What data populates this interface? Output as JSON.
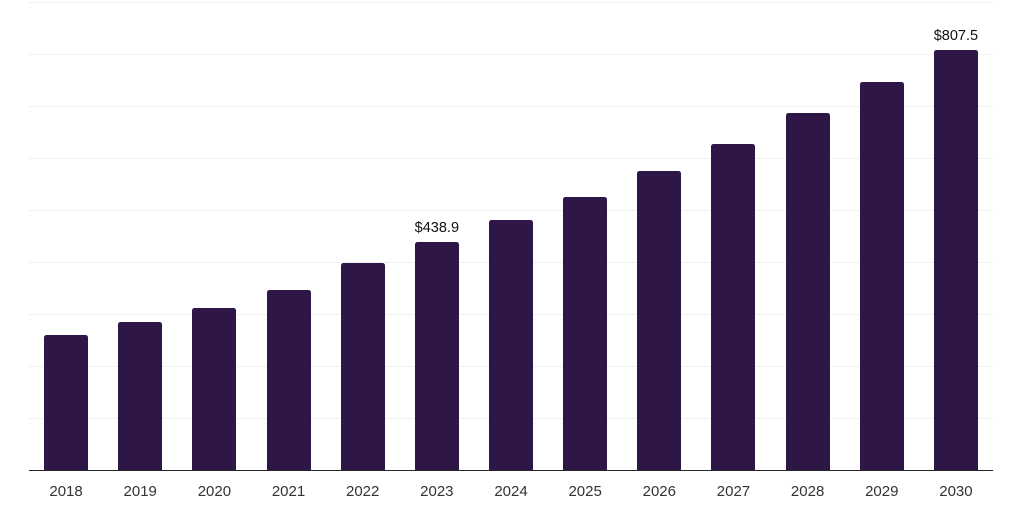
{
  "chart_data": {
    "type": "bar",
    "title": "",
    "xlabel": "",
    "ylabel": "",
    "categories": [
      "2018",
      "2019",
      "2020",
      "2021",
      "2022",
      "2023",
      "2024",
      "2025",
      "2026",
      "2027",
      "2028",
      "2029",
      "2030"
    ],
    "values": [
      258.9,
      283.7,
      312.5,
      347.0,
      397.8,
      438.9,
      481.6,
      525.9,
      575.6,
      626.9,
      686.3,
      745.7,
      807.5
    ],
    "point_labels": [
      "",
      "",
      "",
      "",
      "",
      "$438.9",
      "",
      "",
      "",
      "",
      "",
      "",
      "$807.5"
    ],
    "ylim": [
      0,
      900
    ],
    "grid_step": 100,
    "grid": "horizontal-only",
    "legend": "none",
    "colors": {
      "bar": "#2e1647",
      "grid": "#f0f0f0",
      "axis": "#262626",
      "tick_label": "#333333",
      "data_label": "#111111",
      "background": "#ffffff"
    }
  }
}
